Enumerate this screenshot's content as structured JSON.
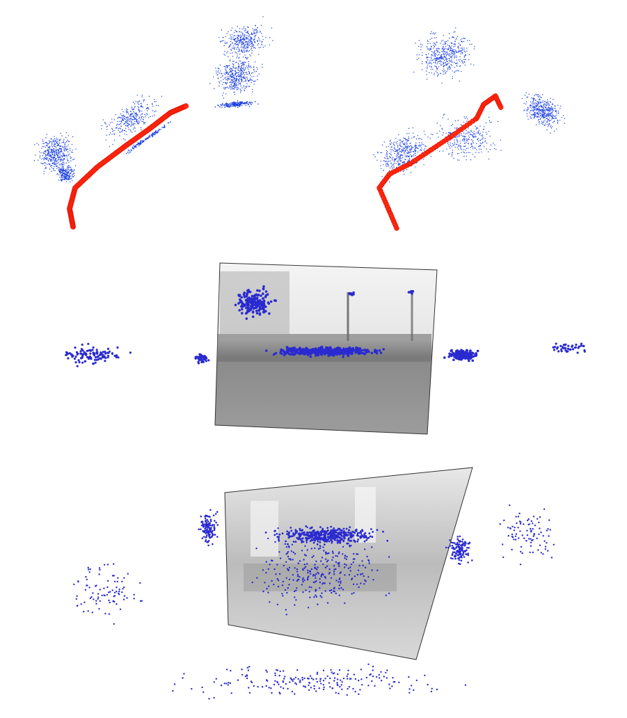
{
  "figure": {
    "panels": [
      {
        "id": "trajectory-outdoor",
        "type": "point-cloud-with-trajectory"
      },
      {
        "id": "trajectory-indoor",
        "type": "point-cloud-with-trajectory"
      },
      {
        "id": "keyframe-outdoor",
        "type": "keyframe-with-projected-points"
      },
      {
        "id": "keyframe-indoor",
        "type": "keyframe-with-projected-points"
      }
    ]
  },
  "colors": {
    "map_points": "#1a3fe0",
    "trajectory": "#ff2a10",
    "trajectory_edge": "#e01000",
    "projected_points": "#2a2ad0",
    "frame_border": "#333333",
    "background": "#ffffff"
  }
}
